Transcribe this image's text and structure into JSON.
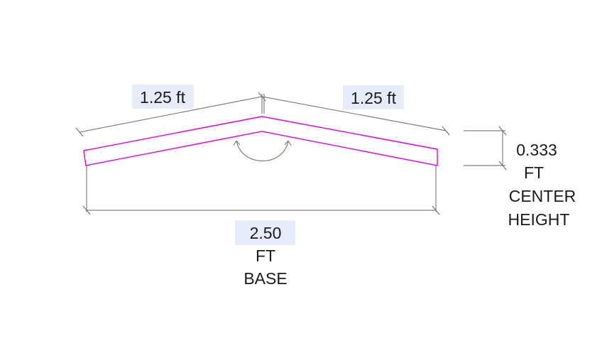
{
  "colors": {
    "part_outline": "#e000e6",
    "dimension_lines": "#808080",
    "label_highlight": "#e6ecf9",
    "text": "#1a1a1a"
  },
  "dimensions": {
    "left_slope": "1.25 ft",
    "right_slope": "1.25 ft",
    "center_height": {
      "value": "0.333",
      "unit": "FT",
      "line1": "CENTER",
      "line2": "HEIGHT"
    },
    "base": {
      "value": "2.50",
      "unit": "FT",
      "name": "BASE"
    }
  },
  "icons": [
    "angle-arc-icon"
  ]
}
